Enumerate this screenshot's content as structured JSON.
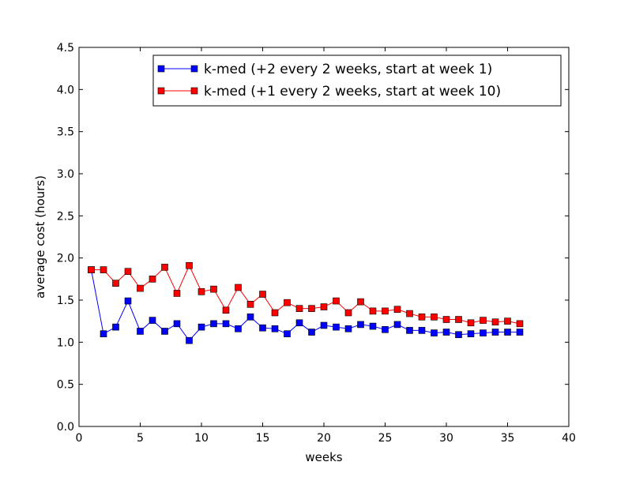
{
  "chart_data": {
    "type": "line",
    "title": "",
    "xlabel": "weeks",
    "ylabel": "average cost (hours)",
    "xlim": [
      0,
      40
    ],
    "ylim": [
      0,
      4.5
    ],
    "xticks": [
      0,
      5,
      10,
      15,
      20,
      25,
      30,
      35,
      40
    ],
    "xtick_labels": [
      "0",
      "5",
      "10",
      "15",
      "20",
      "25",
      "30",
      "35",
      "40"
    ],
    "yticks": [
      0,
      0.5,
      1,
      1.5,
      2,
      2.5,
      3,
      3.5,
      4,
      4.5
    ],
    "ytick_labels": [
      "0.0",
      "0.5",
      "1.0",
      "1.5",
      "2.0",
      "2.5",
      "3.0",
      "3.5",
      "4.0",
      "4.5"
    ],
    "grid": false,
    "legend_position": "top-right",
    "series": [
      {
        "name": "k-med (+2 every 2 weeks, start at week 1)",
        "color": "#0000ff",
        "marker": "square",
        "x": [
          1,
          2,
          3,
          4,
          5,
          6,
          7,
          8,
          9,
          10,
          11,
          12,
          13,
          14,
          15,
          16,
          17,
          18,
          19,
          20,
          21,
          22,
          23,
          24,
          25,
          26,
          27,
          28,
          29,
          30,
          31,
          32,
          33,
          34,
          35,
          36
        ],
        "values": [
          1.86,
          1.1,
          1.18,
          1.49,
          1.13,
          1.26,
          1.13,
          1.22,
          1.02,
          1.18,
          1.22,
          1.22,
          1.16,
          1.3,
          1.17,
          1.16,
          1.1,
          1.23,
          1.12,
          1.2,
          1.18,
          1.16,
          1.21,
          1.19,
          1.15,
          1.21,
          1.14,
          1.14,
          1.11,
          1.12,
          1.09,
          1.1,
          1.11,
          1.12,
          1.12,
          1.12
        ]
      },
      {
        "name": "k-med (+1 every 2 weeks, start at week 10)",
        "color": "#ff0000",
        "marker": "square",
        "x": [
          1,
          2,
          3,
          4,
          5,
          6,
          7,
          8,
          9,
          10,
          11,
          12,
          13,
          14,
          15,
          16,
          17,
          18,
          19,
          20,
          21,
          22,
          23,
          24,
          25,
          26,
          27,
          28,
          29,
          30,
          31,
          32,
          33,
          34,
          35,
          36
        ],
        "values": [
          1.86,
          1.86,
          1.7,
          1.84,
          1.64,
          1.75,
          1.89,
          1.58,
          1.91,
          1.6,
          1.63,
          1.38,
          1.65,
          1.45,
          1.57,
          1.35,
          1.47,
          1.4,
          1.4,
          1.42,
          1.49,
          1.35,
          1.48,
          1.37,
          1.37,
          1.39,
          1.34,
          1.3,
          1.3,
          1.27,
          1.27,
          1.23,
          1.26,
          1.24,
          1.25,
          1.22
        ]
      }
    ]
  }
}
